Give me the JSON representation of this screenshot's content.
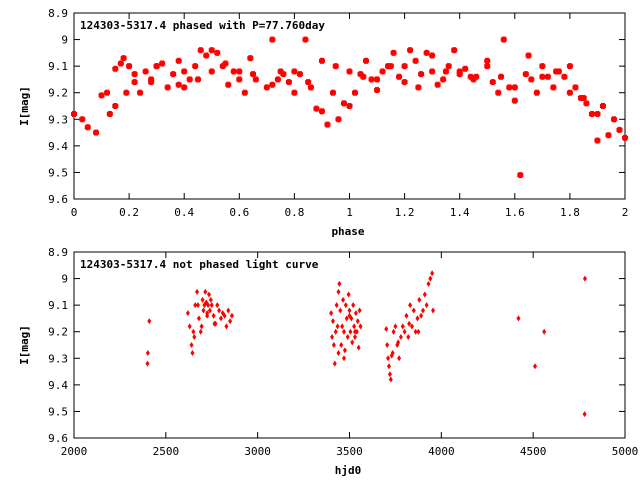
{
  "chart_data": [
    {
      "type": "scatter",
      "title": "124303-5317.4 phased with P=77.760day",
      "xlabel": "phase",
      "ylabel": "I[mag]",
      "xlim": [
        0,
        2
      ],
      "ylim": [
        8.9,
        9.6
      ],
      "y_inverted": true,
      "x_ticks": [
        "0",
        "0.2",
        "0.4",
        "0.6",
        "0.8",
        "1",
        "1.2",
        "1.4",
        "1.6",
        "1.8",
        "2"
      ],
      "y_ticks": [
        "8.9",
        "9",
        "9.1",
        "9.2",
        "9.3",
        "9.4",
        "9.5",
        "9.6"
      ],
      "marker_color": "#ff0000",
      "marker": "star",
      "series": [
        {
          "x": [
            0.0,
            0.03,
            0.05,
            0.08,
            0.1,
            0.12,
            0.13,
            0.15,
            0.17,
            0.19,
            0.2,
            0.22,
            0.24,
            0.26,
            0.28,
            0.3,
            0.32,
            0.34,
            0.36,
            0.38,
            0.4,
            0.42,
            0.44,
            0.46,
            0.48,
            0.5,
            0.52,
            0.54,
            0.56,
            0.58,
            0.6,
            0.62,
            0.64,
            0.66,
            0.7,
            0.72,
            0.74,
            0.76,
            0.78,
            0.8,
            0.82,
            0.84,
            0.86,
            0.88,
            0.9,
            0.92,
            0.94,
            0.96,
            0.98,
            1.0,
            1.02,
            1.04,
            1.06,
            1.08,
            1.1,
            1.12,
            1.14,
            1.16,
            1.18,
            1.2,
            1.22,
            1.24,
            1.26,
            1.28,
            1.3,
            1.32,
            1.34,
            1.36,
            1.38,
            1.4,
            1.42,
            1.44,
            1.46,
            1.5,
            1.52,
            1.54,
            1.56,
            1.58,
            1.6,
            1.62,
            1.64,
            1.66,
            1.68,
            1.7,
            1.72,
            1.74,
            1.76,
            1.78,
            1.8,
            1.82,
            1.84,
            1.86,
            1.88,
            1.9,
            1.92,
            1.94,
            1.96,
            1.98,
            2.0,
            0.15,
            0.22,
            0.3,
            0.38,
            0.45,
            0.55,
            0.65,
            0.75,
            0.85,
            0.95,
            1.05,
            1.15,
            1.25,
            1.35,
            1.45,
            1.55,
            1.65,
            1.75,
            1.85,
            0.18,
            0.28,
            0.4,
            0.5,
            0.6,
            0.72,
            0.8,
            0.9,
            1.0,
            1.1,
            1.2,
            1.3,
            1.4,
            1.5,
            1.6,
            1.7,
            1.8,
            1.9
          ],
          "y": [
            9.28,
            9.3,
            9.33,
            9.35,
            9.21,
            9.2,
            9.28,
            9.25,
            9.09,
            9.2,
            9.1,
            9.13,
            9.2,
            9.12,
            9.15,
            9.1,
            9.09,
            9.18,
            9.13,
            9.08,
            9.18,
            9.15,
            9.1,
            9.04,
            9.06,
            9.12,
            9.05,
            9.1,
            9.17,
            9.12,
            9.15,
            9.2,
            9.07,
            9.15,
            9.18,
            9.0,
            9.15,
            9.13,
            9.16,
            9.2,
            9.13,
            9.0,
            9.18,
            9.26,
            9.27,
            9.32,
            9.2,
            9.3,
            9.24,
            9.25,
            9.2,
            9.13,
            9.08,
            9.15,
            9.19,
            9.12,
            9.1,
            9.05,
            9.14,
            9.16,
            9.04,
            9.08,
            9.13,
            9.05,
            9.12,
            9.17,
            9.15,
            9.1,
            9.04,
            9.13,
            9.11,
            9.14,
            9.14,
            9.1,
            9.16,
            9.2,
            9.0,
            9.18,
            9.23,
            9.51,
            9.13,
            9.15,
            9.2,
            9.1,
            9.14,
            9.18,
            9.12,
            9.14,
            9.2,
            9.18,
            9.22,
            9.24,
            9.28,
            9.38,
            9.25,
            9.36,
            9.3,
            9.34,
            9.37,
            9.11,
            9.16,
            9.1,
            9.17,
            9.15,
            9.09,
            9.13,
            9.12,
            9.16,
            9.1,
            9.14,
            9.1,
            9.18,
            9.12,
            9.15,
            9.14,
            9.06,
            9.12,
            9.22,
            9.07,
            9.16,
            9.12,
            9.04,
            9.12,
            9.17,
            9.12,
            9.08,
            9.12,
            9.15,
            9.1,
            9.06,
            9.12,
            9.08,
            9.18,
            9.14,
            9.1,
            9.28
          ]
        }
      ]
    },
    {
      "type": "scatter",
      "title": "124303-5317.4 not phased light curve",
      "xlabel": "hjd0",
      "ylabel": "I[mag]",
      "xlim": [
        2000,
        5000
      ],
      "ylim": [
        8.9,
        9.6
      ],
      "y_inverted": true,
      "x_ticks": [
        "2000",
        "2500",
        "3000",
        "3500",
        "4000",
        "4500",
        "5000"
      ],
      "y_ticks": [
        "8.9",
        "9",
        "9.1",
        "9.2",
        "9.3",
        "9.4",
        "9.5",
        "9.6"
      ],
      "marker_color": "#ff0000",
      "marker": "diamond",
      "series": [
        {
          "x": [
            2400,
            2402,
            2410,
            2620,
            2630,
            2640,
            2645,
            2650,
            2660,
            2670,
            2680,
            2690,
            2700,
            2705,
            2710,
            2715,
            2720,
            2725,
            2730,
            2735,
            2740,
            2745,
            2750,
            2760,
            2770,
            2780,
            2790,
            2800,
            2810,
            2820,
            2830,
            2840,
            2850,
            2860,
            2655,
            2675,
            2695,
            2725,
            2765,
            3400,
            3405,
            3410,
            3415,
            3420,
            3425,
            3430,
            3435,
            3440,
            3445,
            3450,
            3455,
            3460,
            3465,
            3470,
            3475,
            3480,
            3485,
            3490,
            3495,
            3500,
            3505,
            3510,
            3515,
            3520,
            3525,
            3530,
            3535,
            3540,
            3545,
            3550,
            3555,
            3560,
            3440,
            3470,
            3500,
            3530,
            3700,
            3705,
            3710,
            3715,
            3720,
            3725,
            3730,
            3740,
            3750,
            3760,
            3770,
            3780,
            3790,
            3800,
            3810,
            3820,
            3830,
            3840,
            3850,
            3860,
            3870,
            3880,
            3890,
            3900,
            3910,
            3920,
            3930,
            3940,
            3950,
            3955,
            3735,
            3765,
            3825,
            3875,
            4420,
            4510,
            4560,
            4780,
            4782
          ],
          "y": [
            9.32,
            9.28,
            9.16,
            9.13,
            9.18,
            9.25,
            9.28,
            9.2,
            9.1,
            9.05,
            9.15,
            9.2,
            9.08,
            9.12,
            9.1,
            9.05,
            9.09,
            9.14,
            9.1,
            9.06,
            9.12,
            9.08,
            9.1,
            9.14,
            9.17,
            9.1,
            9.12,
            9.15,
            9.13,
            9.14,
            9.18,
            9.12,
            9.16,
            9.14,
            9.22,
            9.1,
            9.18,
            9.13,
            9.17,
            9.13,
            9.22,
            9.16,
            9.25,
            9.32,
            9.2,
            9.1,
            9.18,
            9.05,
            9.02,
            9.12,
            9.25,
            9.18,
            9.08,
            9.2,
            9.27,
            9.1,
            9.15,
            9.22,
            9.06,
            9.12,
            9.2,
            9.15,
            9.24,
            9.1,
            9.18,
            9.22,
            9.13,
            9.2,
            9.16,
            9.26,
            9.12,
            9.18,
            9.28,
            9.3,
            9.14,
            9.2,
            9.19,
            9.25,
            9.3,
            9.33,
            9.36,
            9.38,
            9.29,
            9.2,
            9.18,
            9.25,
            9.3,
            9.22,
            9.18,
            9.2,
            9.14,
            9.22,
            9.1,
            9.18,
            9.12,
            9.2,
            9.15,
            9.08,
            9.14,
            9.12,
            9.06,
            9.1,
            9.02,
            9.0,
            8.98,
            9.12,
            9.28,
            9.24,
            9.17,
            9.2,
            9.15,
            9.33,
            9.2,
            9.51,
            9.0
          ]
        }
      ]
    }
  ]
}
